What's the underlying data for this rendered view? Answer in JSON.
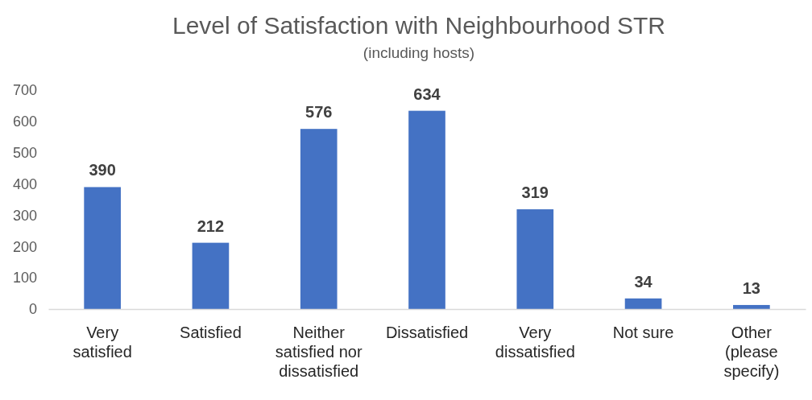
{
  "chart_data": {
    "type": "bar",
    "title": "Level of Satisfaction with Neighbourhood STR",
    "subtitle": "(including hosts)",
    "categories": [
      "Very satisfied",
      "Satisfied",
      "Neither satisfied nor dissatisfied",
      "Dissatisfied",
      "Very dissatisfied",
      "Not sure",
      "Other (please specify)"
    ],
    "values": [
      390,
      212,
      576,
      634,
      319,
      34,
      13
    ],
    "color": "#4472c4",
    "ylim": [
      0,
      700
    ],
    "yticks": [
      0,
      100,
      200,
      300,
      400,
      500,
      600,
      700
    ],
    "grid": false,
    "data_labels": true
  }
}
